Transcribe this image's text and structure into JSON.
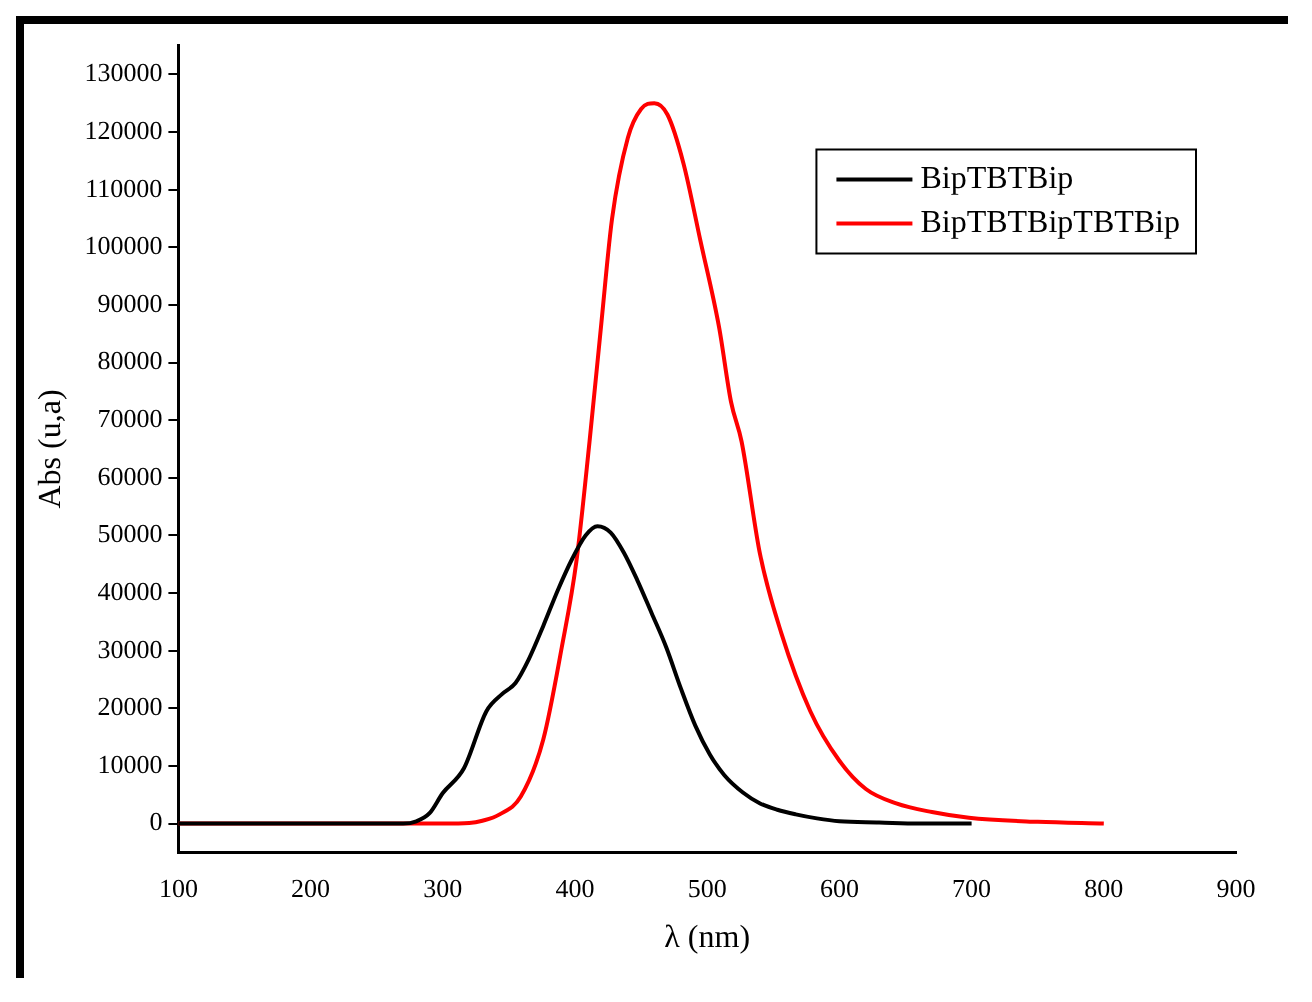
{
  "chart_data": {
    "type": "line",
    "xlabel": "λ (nm)",
    "ylabel": "Abs (u,a)",
    "xlim": [
      100,
      900
    ],
    "xticks": [
      100,
      200,
      300,
      400,
      500,
      600,
      700,
      800,
      900
    ],
    "ylim": [
      -5000,
      135000
    ],
    "yticks": [
      0,
      10000,
      20000,
      30000,
      40000,
      50000,
      60000,
      70000,
      80000,
      90000,
      100000,
      110000,
      120000,
      130000
    ],
    "grid": false,
    "legend": "top right",
    "marker": "none",
    "line_style": "solid",
    "series": [
      {
        "name": "BipTBTBip",
        "color": "#000000",
        "x": [
          100,
          200,
          270,
          280,
          290,
          300,
          316,
          333,
          345,
          355,
          365,
          376,
          387,
          398,
          408,
          417,
          427,
          437,
          447,
          458,
          469,
          480,
          491,
          502,
          513,
          527,
          540,
          553,
          567,
          583,
          600,
          630,
          660,
          700
        ],
        "values": [
          0,
          0,
          0,
          400,
          1800,
          5300,
          9600,
          19500,
          22500,
          24400,
          28500,
          34300,
          40500,
          46000,
          50000,
          51600,
          50500,
          47000,
          42300,
          36500,
          30600,
          23500,
          17000,
          12000,
          8400,
          5400,
          3500,
          2400,
          1600,
          900,
          400,
          200,
          0,
          0
        ]
      },
      {
        "name": "BipTBTBipTBTBip",
        "color": "#ff0000",
        "x": [
          100,
          200,
          300,
          320,
          330,
          343,
          359,
          376,
          390,
          401,
          411,
          420,
          428,
          440,
          450,
          460,
          470,
          482,
          495,
          509,
          518,
          526,
          540,
          556,
          578,
          600,
          620,
          643,
          670,
          698,
          750,
          800
        ],
        "values": [
          0,
          0,
          0,
          100,
          500,
          1600,
          4700,
          14600,
          30600,
          45400,
          66300,
          87000,
          104900,
          119000,
          124000,
          125000,
          123000,
          114600,
          101000,
          86100,
          73200,
          66300,
          46700,
          33100,
          19500,
          10900,
          6000,
          3500,
          2000,
          1000,
          300,
          0
        ]
      }
    ]
  }
}
